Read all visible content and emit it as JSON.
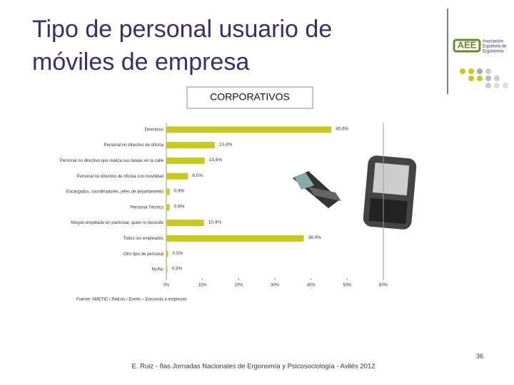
{
  "slide_title": "Tipo de personal usuario de móviles de empresa",
  "logo": {
    "lines": [
      "Asociación",
      "Española de",
      "Ergonomía"
    ]
  },
  "chart_data": {
    "type": "hbar",
    "title": "CORPORATIVOS",
    "categories": [
      "Directivos",
      "Personal no directivo de oficina",
      "Personal no directivo que realiza sus tareas en la calle",
      "Personal no directivo de oficina con movilidad",
      "Encargados, coordinadores, jefes de departamento",
      "Personal Técnico",
      "Ningún empleado en particular, quien lo necesite",
      "Todos los empleados",
      "Otro tipo de personal",
      "Ns/Nc"
    ],
    "values": [
      45.6,
      13.4,
      10.6,
      6.0,
      0.9,
      0.9,
      10.4,
      38.0,
      0.5,
      0.3
    ],
    "value_labels": [
      "45,6%",
      "13,4%",
      "10,6%",
      "6,0%",
      "0,9%",
      "0,9%",
      "10,4%",
      "38,0%",
      "0,5%",
      "0,3%"
    ],
    "color": "#c9c81c",
    "xlim": [
      0,
      60
    ],
    "xticks": [
      {
        "value": 0,
        "label": "0%"
      },
      {
        "value": 10,
        "label": "10%"
      },
      {
        "value": 20,
        "label": "20%"
      },
      {
        "value": 30,
        "label": "30%"
      },
      {
        "value": 40,
        "label": "40%"
      },
      {
        "value": 50,
        "label": "50%"
      },
      {
        "value": 60,
        "label": "60%"
      }
    ],
    "source": "Fuente: AMETIC / Red.es / Everis – Encuesta a empresas"
  },
  "footer": "E. Ruiz - 8as Jornadas Nacionales de Ergonomía y Psicosociología - Avilés 2012",
  "page_number": "36"
}
